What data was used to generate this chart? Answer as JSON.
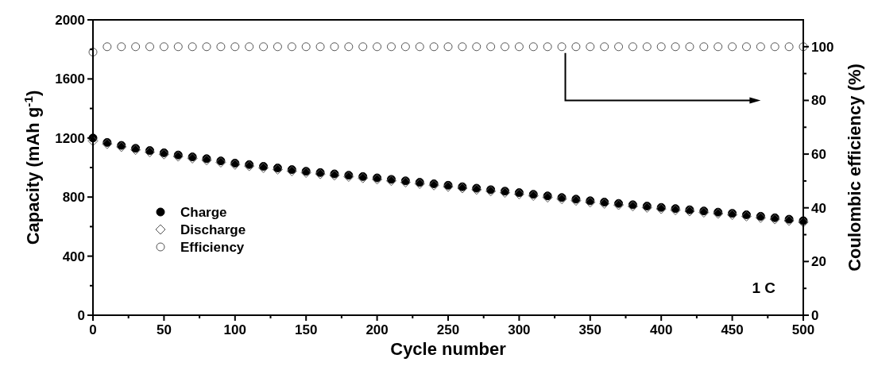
{
  "chart_data": {
    "type": "scatter",
    "xlabel": "Cycle number",
    "ylabel": "Capacity (mAh g$^{-1}$)",
    "y2label": "Coulombic efficiency (%)",
    "x": [
      0,
      10,
      20,
      30,
      40,
      50,
      60,
      70,
      80,
      90,
      100,
      110,
      120,
      130,
      140,
      150,
      160,
      170,
      180,
      190,
      200,
      210,
      220,
      230,
      240,
      250,
      260,
      270,
      280,
      290,
      300,
      310,
      320,
      330,
      340,
      350,
      360,
      370,
      380,
      390,
      400,
      410,
      420,
      430,
      440,
      450,
      460,
      470,
      480,
      490,
      500
    ],
    "series": [
      {
        "name": "Charge",
        "color": "#000000",
        "marker": "circle",
        "values": [
          1200,
          1170,
          1150,
          1130,
          1115,
          1100,
          1085,
          1072,
          1060,
          1045,
          1030,
          1020,
          1008,
          997,
          986,
          975,
          966,
          957,
          948,
          939,
          930,
          920,
          910,
          900,
          890,
          880,
          870,
          860,
          850,
          840,
          830,
          819,
          808,
          797,
          786,
          775,
          766,
          757,
          748,
          739,
          730,
          722,
          714,
          706,
          698,
          690,
          680,
          670,
          660,
          650,
          640
        ]
      },
      {
        "name": "Discharge",
        "color": "#555555",
        "marker": "diamond",
        "values": [
          1180,
          1160,
          1140,
          1120,
          1105,
          1090,
          1075,
          1062,
          1050,
          1035,
          1020,
          1010,
          998,
          987,
          976,
          965,
          956,
          947,
          938,
          929,
          920,
          910,
          900,
          890,
          880,
          870,
          860,
          850,
          840,
          830,
          820,
          809,
          798,
          787,
          776,
          765,
          756,
          747,
          738,
          729,
          720,
          712,
          704,
          696,
          688,
          680,
          670,
          660,
          650,
          640,
          630
        ]
      },
      {
        "name": "Efficiency",
        "color": "#555555",
        "marker": "circle",
        "axis": "y2",
        "values": [
          98,
          100,
          100,
          100,
          100,
          100,
          100,
          100,
          100,
          100,
          100,
          100,
          100,
          100,
          100,
          100,
          100,
          100,
          100,
          100,
          100,
          100,
          100,
          100,
          100,
          100,
          100,
          100,
          100,
          100,
          100,
          100,
          100,
          100,
          100,
          100,
          100,
          100,
          100,
          100,
          100,
          100,
          100,
          100,
          100,
          100,
          100,
          100,
          100,
          100,
          100
        ]
      }
    ],
    "xlim": [
      0,
      500
    ],
    "xticks": [
      0,
      {
        "value": 25,
        "label": null
      },
      50,
      {
        "value": 75,
        "label": null
      },
      100,
      {
        "value": 125,
        "label": null
      },
      150,
      {
        "value": 175,
        "label": null
      },
      200,
      {
        "value": 225,
        "label": null
      },
      250,
      {
        "value": 275,
        "label": null
      },
      300,
      {
        "value": 325,
        "label": null
      },
      350,
      {
        "value": 375,
        "label": null
      },
      400,
      {
        "value": 425,
        "label": null
      },
      450,
      {
        "value": 475,
        "label": null
      },
      500
    ],
    "ylim": [
      0,
      2000
    ],
    "yticks": [
      0,
      {
        "value": 200,
        "label": null
      },
      400,
      {
        "value": 600,
        "label": null
      },
      800,
      {
        "value": 1000,
        "label": null
      },
      1200,
      {
        "value": 1400,
        "label": null
      },
      1600,
      {
        "value": 1800,
        "label": null
      },
      2000
    ],
    "y2lim": [
      0,
      110
    ],
    "y2ticks": [
      0,
      {
        "value": 10,
        "label": null
      },
      20,
      {
        "value": 30,
        "label": null
      },
      40,
      {
        "value": 50,
        "label": null
      },
      60,
      {
        "value": 70,
        "label": null
      },
      80,
      {
        "value": 90,
        "label": null
      },
      100
    ],
    "annotations": [
      "1 C"
    ],
    "legend": "bottom left"
  }
}
